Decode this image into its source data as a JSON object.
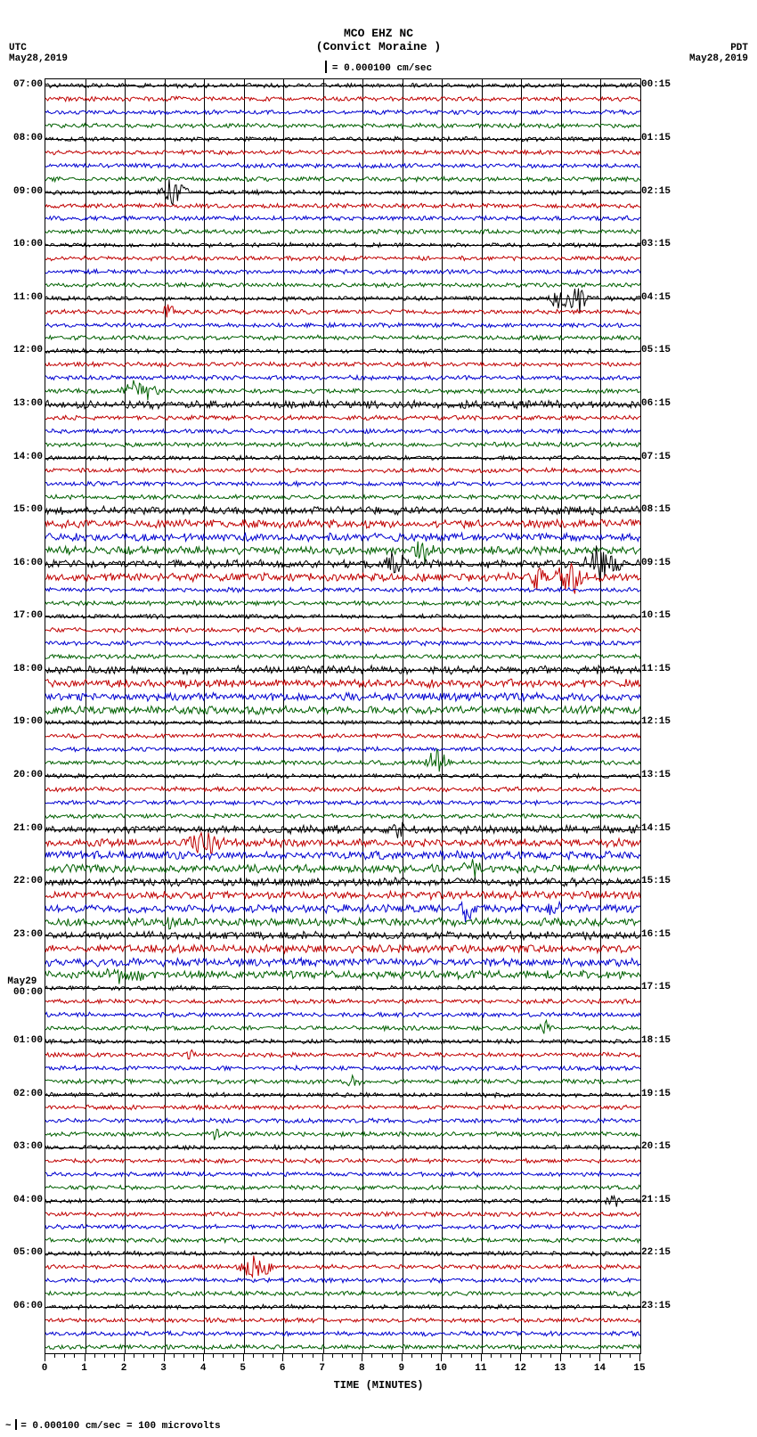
{
  "header": {
    "station": "MCO EHZ NC",
    "location": "(Convict Moraine )",
    "scale_text": "= 0.000100 cm/sec"
  },
  "left_tz": {
    "label": "UTC",
    "date": "May28,2019"
  },
  "right_tz": {
    "label": "PDT",
    "date": "May28,2019"
  },
  "plot": {
    "x_minutes": 15,
    "n_hours": 24,
    "traces_per_hour": 4,
    "colors": [
      "#000000",
      "#c00000",
      "#0000d0",
      "#006000"
    ],
    "background": "#ffffff",
    "grid_color": "#000000",
    "left_hour_labels": [
      "07:00",
      "08:00",
      "09:00",
      "10:00",
      "11:00",
      "12:00",
      "13:00",
      "14:00",
      "15:00",
      "16:00",
      "17:00",
      "18:00",
      "19:00",
      "20:00",
      "21:00",
      "22:00",
      "23:00",
      "May29\n 00:00",
      "01:00",
      "02:00",
      "03:00",
      "04:00",
      "05:00",
      "06:00"
    ],
    "right_hour_labels": [
      "00:15",
      "01:15",
      "02:15",
      "03:15",
      "04:15",
      "05:15",
      "06:15",
      "07:15",
      "08:15",
      "09:15",
      "10:15",
      "11:15",
      "12:15",
      "13:15",
      "14:15",
      "15:15",
      "16:15",
      "17:15",
      "18:15",
      "19:15",
      "20:15",
      "21:15",
      "22:15",
      "23:15"
    ],
    "xaxis_title": "TIME (MINUTES)",
    "xtick_labels": [
      "0",
      "1",
      "2",
      "3",
      "4",
      "5",
      "6",
      "7",
      "8",
      "9",
      "10",
      "11",
      "12",
      "13",
      "14",
      "15"
    ],
    "events": [
      {
        "line": 8,
        "minute": 3.0,
        "dur": 0.8,
        "amp": 14
      },
      {
        "line": 16,
        "minute": 12.8,
        "dur": 0.7,
        "amp": 12
      },
      {
        "line": 16,
        "minute": 13.3,
        "dur": 0.6,
        "amp": 14
      },
      {
        "line": 17,
        "minute": 3.0,
        "dur": 0.4,
        "amp": 10
      },
      {
        "line": 23,
        "minute": 2.0,
        "dur": 1.3,
        "amp": 10
      },
      {
        "line": 35,
        "minute": 9.3,
        "dur": 0.8,
        "amp": 12
      },
      {
        "line": 36,
        "minute": 8.6,
        "dur": 0.7,
        "amp": 16
      },
      {
        "line": 36,
        "minute": 13.8,
        "dur": 1.0,
        "amp": 20
      },
      {
        "line": 37,
        "minute": 12.3,
        "dur": 0.5,
        "amp": 12
      },
      {
        "line": 37,
        "minute": 13.0,
        "dur": 1.0,
        "amp": 16
      },
      {
        "line": 51,
        "minute": 9.7,
        "dur": 0.8,
        "amp": 12
      },
      {
        "line": 56,
        "minute": 8.8,
        "dur": 0.5,
        "amp": 10
      },
      {
        "line": 57,
        "minute": 3.7,
        "dur": 1.2,
        "amp": 12
      },
      {
        "line": 59,
        "minute": 10.6,
        "dur": 0.6,
        "amp": 12
      },
      {
        "line": 62,
        "minute": 10.5,
        "dur": 0.5,
        "amp": 12
      },
      {
        "line": 62,
        "minute": 12.7,
        "dur": 0.5,
        "amp": 10
      },
      {
        "line": 63,
        "minute": 3.0,
        "dur": 0.5,
        "amp": 9
      },
      {
        "line": 67,
        "minute": 1.7,
        "dur": 1.2,
        "amp": 12
      },
      {
        "line": 71,
        "minute": 12.5,
        "dur": 0.4,
        "amp": 9
      },
      {
        "line": 73,
        "minute": 3.6,
        "dur": 0.3,
        "amp": 9
      },
      {
        "line": 75,
        "minute": 7.6,
        "dur": 0.6,
        "amp": 8
      },
      {
        "line": 79,
        "minute": 4.2,
        "dur": 0.3,
        "amp": 10
      },
      {
        "line": 84,
        "minute": 14.2,
        "dur": 0.4,
        "amp": 10
      },
      {
        "line": 89,
        "minute": 5.0,
        "dur": 1.0,
        "amp": 14
      }
    ],
    "noise_base_amp": 2.0,
    "noise_hi_amp_lines": [
      24,
      32,
      33,
      34,
      35,
      36,
      37,
      44,
      45,
      46,
      47,
      56,
      57,
      58,
      59,
      60,
      61,
      62,
      63,
      64,
      65,
      66,
      67
    ]
  },
  "footer": {
    "text": "= 0.000100 cm/sec =    100 microvolts"
  }
}
